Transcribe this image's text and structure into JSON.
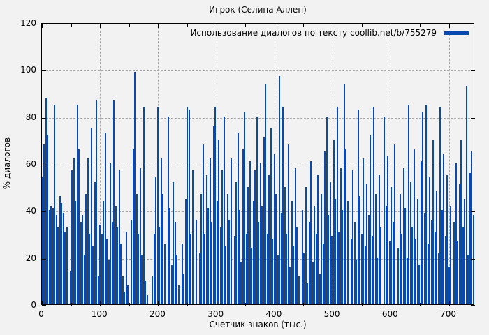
{
  "title": "Игрок (Селина Аллен)",
  "legend": {
    "label": "Использование диалогов по тексту coollib.net/b/755279",
    "swatch_color": "#0948ae"
  },
  "axes": {
    "x_label": "Счетчик знаков (тыс.)",
    "y_label": "% диалогов"
  },
  "colors": {
    "background": "#f2f2f2",
    "bar": "#0948ae",
    "grid": "#a8a8a8",
    "border": "#000000"
  },
  "chart_data": {
    "type": "bar",
    "title": "Игрок (Селина Аллен)",
    "series_name": "Использование диалогов по тексту coollib.net/b/755279",
    "xlabel": "Счетчик знаков (тыс.)",
    "ylabel": "% диалогов",
    "xlim": [
      0,
      745
    ],
    "ylim": [
      0,
      120
    ],
    "x_ticks": [
      0,
      100,
      200,
      300,
      400,
      500,
      600,
      700
    ],
    "x_minor_tick_step": 50,
    "y_ticks": [
      0,
      20,
      40,
      60,
      80,
      100,
      120
    ],
    "grid": true,
    "legend_position": "top-right-inside",
    "x_start": 1,
    "x_step": 3,
    "values": [
      54,
      68,
      88,
      72,
      40,
      42,
      41,
      85,
      38,
      33,
      46,
      43,
      39,
      31,
      33,
      0,
      14,
      57,
      62,
      44,
      85,
      66,
      35,
      38,
      21,
      47,
      62,
      30,
      75,
      25,
      52,
      87,
      12,
      34,
      30,
      44,
      73,
      28,
      19,
      60,
      35,
      87,
      42,
      33,
      57,
      26,
      12,
      5,
      31,
      8,
      0,
      36,
      66,
      99,
      47,
      30,
      58,
      21,
      84,
      10,
      4,
      0,
      0,
      12,
      30,
      54,
      84,
      33,
      62,
      47,
      26,
      0,
      80,
      41,
      17,
      52,
      35,
      21,
      8,
      0,
      26,
      13,
      45,
      84,
      83,
      30,
      57,
      0,
      36,
      0,
      22,
      47,
      68,
      30,
      55,
      41,
      62,
      35,
      76,
      84,
      44,
      70,
      33,
      57,
      80,
      25,
      47,
      36,
      62,
      0,
      29,
      52,
      73,
      40,
      18,
      66,
      82,
      30,
      50,
      61,
      24,
      44,
      57,
      80,
      35,
      60,
      42,
      71,
      94,
      30,
      55,
      75,
      28,
      64,
      47,
      21,
      97,
      39,
      84,
      50,
      30,
      68,
      16,
      44,
      25,
      58,
      33,
      12,
      0,
      40,
      22,
      50,
      9,
      35,
      61,
      18,
      42,
      30,
      55,
      13,
      47,
      26,
      65,
      80,
      38,
      52,
      29,
      70,
      45,
      84,
      31,
      58,
      40,
      94,
      66,
      44,
      0,
      28,
      57,
      35,
      19,
      83,
      46,
      30,
      62,
      25,
      51,
      38,
      72,
      29,
      84,
      47,
      20,
      55,
      33,
      0,
      80,
      42,
      63,
      27,
      50,
      35,
      68,
      0,
      24,
      47,
      30,
      58,
      41,
      20,
      85,
      52,
      33,
      66,
      28,
      45,
      17,
      61,
      82,
      39,
      85,
      26,
      54,
      36,
      70,
      31,
      48,
      22,
      84,
      40,
      64,
      29,
      55,
      16,
      42,
      0,
      35,
      60,
      27,
      51,
      70,
      33,
      45,
      93,
      21,
      56,
      65,
      38
    ]
  }
}
